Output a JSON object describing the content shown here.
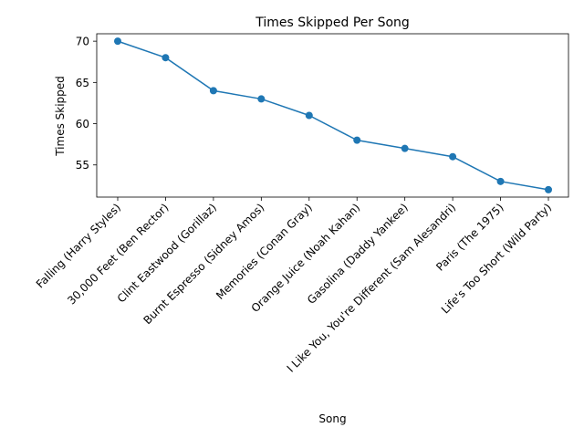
{
  "chart_data": {
    "type": "line",
    "title": "Times Skipped Per Song",
    "xlabel": "Song",
    "ylabel": "Times Skipped",
    "categories": [
      "Falling (Harry Styles)",
      "30,000 Feet (Ben Rector)",
      "Clint Eastwood (Gorillaz)",
      "Burnt Espresso (Sidney Amos)",
      "Memories (Conan Gray)",
      "Orange Juice (Noah Kahan)",
      "Gasolina (Daddy Yankee)",
      "I Like You, You're Different (Sam Alesandri)",
      "Paris (The 1975)",
      "Life's Too Short (Wild Party)"
    ],
    "series": [
      {
        "values": [
          70,
          68,
          64,
          63,
          61,
          58,
          57,
          56,
          53,
          52
        ]
      }
    ],
    "ylim": [
      51.1,
      70.9
    ],
    "yticks": [
      "55",
      "60",
      "65",
      "70"
    ],
    "grid": false,
    "legend": "none",
    "marker": "circle",
    "line_color": "#1f77b4"
  }
}
